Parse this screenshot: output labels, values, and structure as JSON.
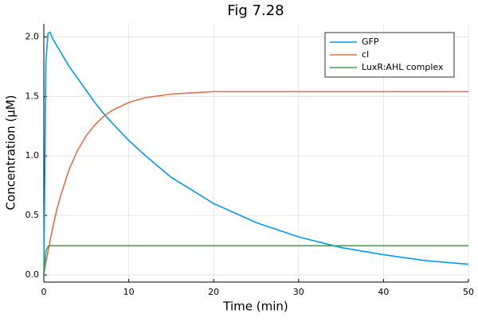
{
  "chart_data": {
    "type": "line",
    "title": "Fig 7.28",
    "x_label": "Time (min)",
    "y_label": "Concentration (μM)",
    "x": [
      0,
      0.25,
      0.5,
      0.75,
      1,
      1.5,
      2,
      3,
      4,
      5,
      6,
      7,
      8,
      10,
      12,
      15,
      20,
      25,
      30,
      35,
      40,
      45,
      50
    ],
    "series": [
      {
        "name": "GFP",
        "color": "#009af9",
        "values": [
          0,
          1.8,
          2.03,
          2.04,
          1.99,
          1.93,
          1.87,
          1.75,
          1.65,
          1.55,
          1.45,
          1.36,
          1.28,
          1.13,
          1.0,
          0.82,
          0.6,
          0.44,
          0.32,
          0.23,
          0.17,
          0.12,
          0.09
        ]
      },
      {
        "name": "cI",
        "color": "#e26f46",
        "values": [
          0,
          0.107,
          0.2,
          0.29,
          0.38,
          0.54,
          0.67,
          0.89,
          1.05,
          1.17,
          1.26,
          1.33,
          1.38,
          1.45,
          1.49,
          1.52,
          1.54,
          1.54,
          1.54,
          1.54,
          1.54,
          1.54,
          1.54
        ]
      },
      {
        "name": "LuxR:AHL complex",
        "color": "#3da44d",
        "values": [
          0,
          0.2,
          0.24,
          0.245,
          0.245,
          0.245,
          0.245,
          0.245,
          0.245,
          0.245,
          0.245,
          0.245,
          0.245,
          0.245,
          0.245,
          0.245,
          0.245,
          0.245,
          0.245,
          0.245,
          0.245,
          0.245,
          0.245
        ]
      }
    ],
    "xlim": [
      0,
      50
    ],
    "xticks": [
      0,
      10,
      20,
      30,
      40,
      50
    ],
    "ylim": [
      -0.06,
      2.11
    ],
    "yticks": [
      {
        "value": 0,
        "label": "0.0"
      },
      0.5,
      {
        "value": 1,
        "label": "1.0"
      },
      1.5,
      {
        "value": 2,
        "label": "2.0"
      }
    ],
    "grid": true,
    "legend": "top-right"
  }
}
